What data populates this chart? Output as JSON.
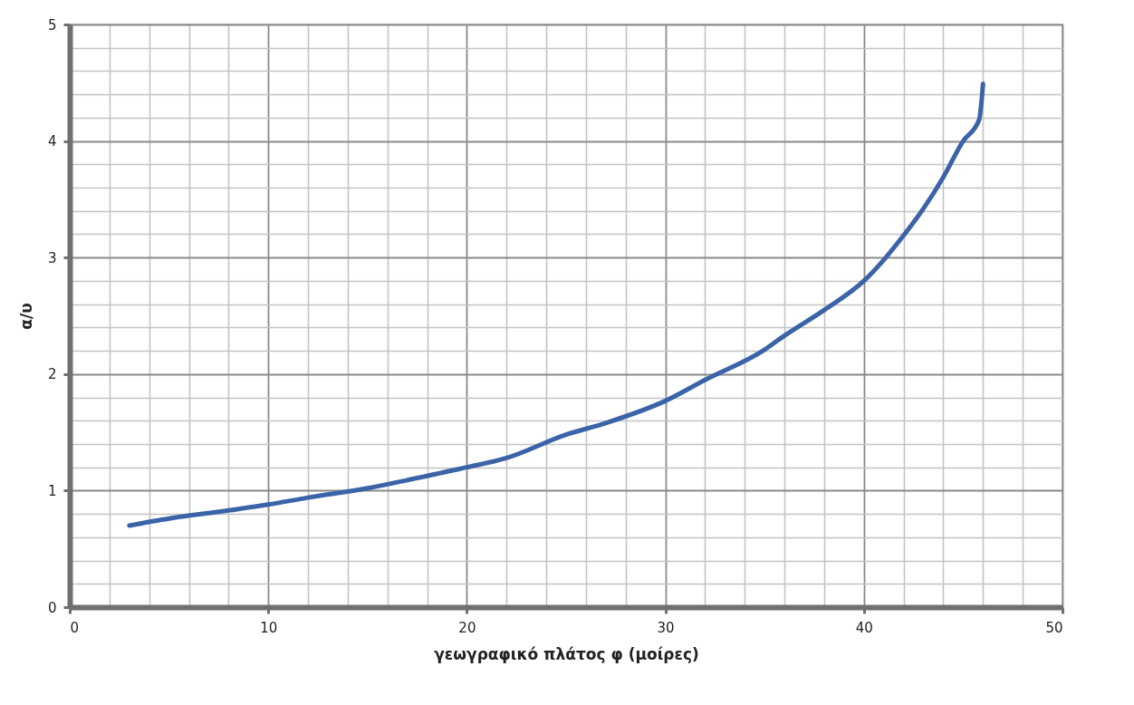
{
  "chart_data": {
    "type": "line",
    "xlabel": "γεωγραφικό πλάτος φ (μοίρες)",
    "ylabel": "α/υ",
    "x": [
      3,
      5,
      8,
      10,
      12,
      15,
      17,
      20,
      22,
      25,
      27,
      30,
      32,
      35,
      36,
      38,
      40,
      41,
      42,
      43,
      44,
      45,
      45.8,
      46
    ],
    "series": [
      {
        "color": "#3a63a8",
        "values": [
          0.7,
          0.76,
          0.83,
          0.88,
          0.94,
          1.02,
          1.09,
          1.2,
          1.28,
          1.48,
          1.58,
          1.77,
          1.95,
          2.21,
          2.33,
          2.55,
          2.8,
          2.98,
          3.19,
          3.42,
          3.69,
          4.0,
          4.18,
          4.49
        ]
      }
    ],
    "xlim": [
      0,
      50
    ],
    "ylim": [
      0,
      5
    ],
    "xticks": [
      0,
      {
        "value": 2,
        "label": null
      },
      {
        "value": 4,
        "label": null
      },
      {
        "value": 6,
        "label": null
      },
      {
        "value": 8,
        "label": null
      },
      10,
      {
        "value": 12,
        "label": null
      },
      {
        "value": 14,
        "label": null
      },
      {
        "value": 16,
        "label": null
      },
      {
        "value": 18,
        "label": null
      },
      20,
      {
        "value": 22,
        "label": null
      },
      {
        "value": 24,
        "label": null
      },
      {
        "value": 26,
        "label": null
      },
      {
        "value": 28,
        "label": null
      },
      30,
      {
        "value": 32,
        "label": null
      },
      {
        "value": 34,
        "label": null
      },
      {
        "value": 36,
        "label": null
      },
      {
        "value": 38,
        "label": null
      },
      40,
      {
        "value": 42,
        "label": null
      },
      {
        "value": 44,
        "label": null
      },
      {
        "value": 46,
        "label": null
      },
      {
        "value": 48,
        "label": null
      },
      50
    ],
    "yticks": [
      0,
      {
        "value": 0.2,
        "label": null
      },
      {
        "value": 0.4,
        "label": null
      },
      {
        "value": 0.6,
        "label": null
      },
      {
        "value": 0.8,
        "label": null
      },
      1,
      {
        "value": 1.2,
        "label": null
      },
      {
        "value": 1.4,
        "label": null
      },
      {
        "value": 1.6,
        "label": null
      },
      {
        "value": 1.8,
        "label": null
      },
      2,
      {
        "value": 2.2,
        "label": null
      },
      {
        "value": 2.4,
        "label": null
      },
      {
        "value": 2.6,
        "label": null
      },
      {
        "value": 2.8,
        "label": null
      },
      3,
      {
        "value": 3.2,
        "label": null
      },
      {
        "value": 3.4,
        "label": null
      },
      {
        "value": 3.6,
        "label": null
      },
      {
        "value": 3.8,
        "label": null
      },
      4,
      {
        "value": 4.2,
        "label": null
      },
      {
        "value": 4.4,
        "label": null
      },
      {
        "value": 4.6,
        "label": null
      },
      {
        "value": 4.8,
        "label": null
      },
      5
    ],
    "grid": true,
    "marker": "none",
    "line_style": "solid"
  }
}
